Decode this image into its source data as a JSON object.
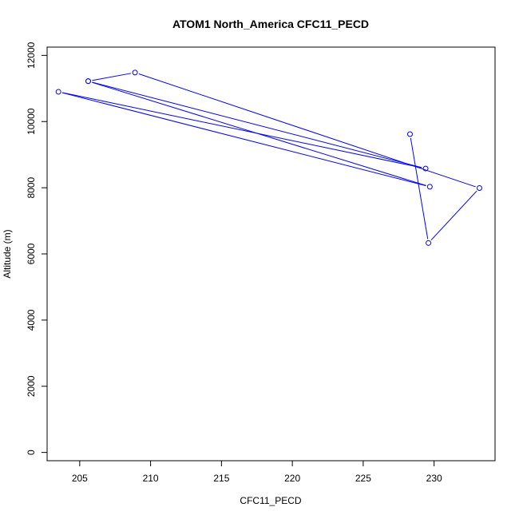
{
  "chart_data": {
    "type": "line",
    "title": "ATOM1 North_America CFC11_PECD",
    "xlabel": "CFC11_PECD",
    "ylabel": "Altitude (m)",
    "xlim": [
      202.7,
      234.3
    ],
    "ylim": [
      -250,
      12250
    ],
    "x_ticks": [
      205,
      210,
      215,
      220,
      225,
      230
    ],
    "y_ticks": [
      0,
      2000,
      4000,
      6000,
      8000,
      10000,
      12000
    ],
    "x_tick_labels": [
      "205",
      "210",
      "215",
      "220",
      "225",
      "230"
    ],
    "y_tick_labels": [
      "0",
      "2000",
      "4000",
      "6000",
      "8000",
      "10000",
      "12000"
    ],
    "grid": false,
    "legend": "none",
    "series": [
      {
        "color": "#0000ff",
        "marker": "open-circle",
        "points": [
          {
            "x": 228.3,
            "y": 9620
          },
          {
            "x": 229.6,
            "y": 6330
          },
          {
            "x": 233.2,
            "y": 7990
          },
          {
            "x": 208.9,
            "y": 11480
          },
          {
            "x": 205.6,
            "y": 11220
          },
          {
            "x": 229.4,
            "y": 8580
          },
          {
            "x": 203.5,
            "y": 10900
          },
          {
            "x": 229.7,
            "y": 8030
          },
          {
            "x": 205.6,
            "y": 11220
          }
        ]
      }
    ]
  }
}
